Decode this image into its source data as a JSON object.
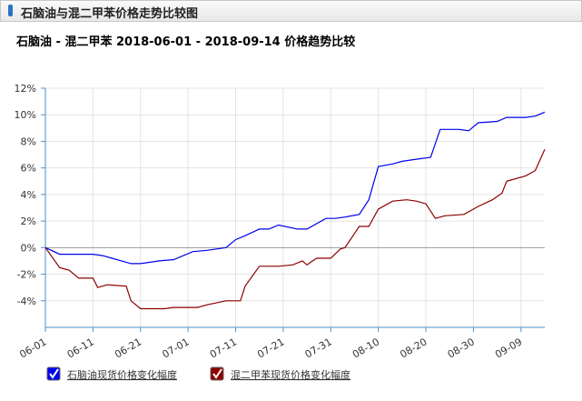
{
  "header": {
    "title": "石脑油与混二甲苯价格走势比较图"
  },
  "chart_data": {
    "type": "line",
    "title": "石脑油 - 混二甲苯 2018-06-01 - 2018-09-14 价格趋势比较",
    "xlim": [
      "06-01",
      "09-14"
    ],
    "xticks": [
      "06-01",
      "06-11",
      "06-21",
      "07-01",
      "07-11",
      "07-21",
      "07-31",
      "08-10",
      "08-20",
      "08-30",
      "09-09"
    ],
    "ylim": [
      -6,
      12
    ],
    "yticks": [
      {
        "value": 12,
        "label": "12%"
      },
      {
        "value": 10,
        "label": "10%"
      },
      {
        "value": 8,
        "label": "8%"
      },
      {
        "value": 6,
        "label": "6%"
      },
      {
        "value": 4,
        "label": "4%"
      },
      {
        "value": 2,
        "label": "2%"
      },
      {
        "value": 0,
        "label": "0%"
      },
      {
        "value": -2,
        "label": "-2%"
      },
      {
        "value": -4,
        "label": "-4%"
      }
    ],
    "grid": true,
    "series": [
      {
        "name": "石脑油现货价格变化幅度",
        "color": "#0000ee",
        "x": [
          "06-01",
          "06-04",
          "06-08",
          "06-11",
          "06-13",
          "06-15",
          "06-19",
          "06-21",
          "06-25",
          "06-28",
          "07-02",
          "07-05",
          "07-09",
          "07-11",
          "07-13",
          "07-16",
          "07-18",
          "07-20",
          "07-24",
          "07-26",
          "07-30",
          "08-01",
          "08-03",
          "08-06",
          "08-08",
          "08-10",
          "08-13",
          "08-15",
          "08-17",
          "08-21",
          "08-23",
          "08-27",
          "08-29",
          "08-31",
          "09-04",
          "09-06",
          "09-10",
          "09-12",
          "09-14"
        ],
        "values": [
          0,
          -0.5,
          -0.5,
          -0.5,
          -0.6,
          -0.8,
          -1.2,
          -1.2,
          -1.0,
          -0.9,
          -0.3,
          -0.2,
          0.0,
          0.6,
          0.9,
          1.4,
          1.4,
          1.7,
          1.4,
          1.4,
          2.2,
          2.2,
          2.3,
          2.5,
          3.6,
          6.1,
          6.3,
          6.5,
          6.6,
          6.8,
          8.9,
          8.9,
          8.8,
          9.4,
          9.5,
          9.8,
          9.8,
          9.9,
          10.2
        ]
      },
      {
        "name": "混二甲苯现货价格变化幅度",
        "color": "#8b0000",
        "x": [
          "06-01",
          "06-04",
          "06-06",
          "06-08",
          "06-11",
          "06-12",
          "06-14",
          "06-18",
          "06-19",
          "06-21",
          "06-26",
          "06-28",
          "07-03",
          "07-05",
          "07-09",
          "07-12",
          "07-13",
          "07-16",
          "07-20",
          "07-23",
          "07-25",
          "07-26",
          "07-28",
          "07-31",
          "08-02",
          "08-03",
          "08-06",
          "08-08",
          "08-10",
          "08-13",
          "08-16",
          "08-18",
          "08-20",
          "08-22",
          "08-24",
          "08-28",
          "08-31",
          "09-03",
          "09-05",
          "09-06",
          "09-10",
          "09-12",
          "09-14"
        ],
        "values": [
          0,
          -1.5,
          -1.7,
          -2.3,
          -2.3,
          -3.0,
          -2.8,
          -2.9,
          -4.0,
          -4.6,
          -4.6,
          -4.5,
          -4.5,
          -4.3,
          -4.0,
          -4.0,
          -2.9,
          -1.4,
          -1.4,
          -1.3,
          -1.0,
          -1.3,
          -0.8,
          -0.8,
          -0.1,
          0,
          1.6,
          1.6,
          2.9,
          3.5,
          3.6,
          3.5,
          3.3,
          2.2,
          2.4,
          2.5,
          3.1,
          3.6,
          4.1,
          5.0,
          5.4,
          5.8,
          7.4
        ]
      }
    ]
  }
}
